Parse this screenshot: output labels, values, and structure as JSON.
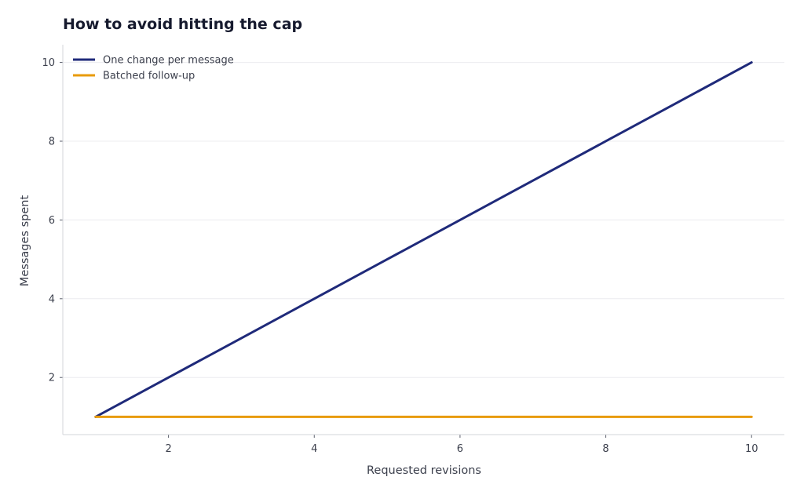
{
  "chart_data": {
    "type": "line",
    "title": "How to avoid hitting the cap",
    "xlabel": "Requested revisions",
    "ylabel": "Messages spent",
    "x": [
      1,
      2,
      3,
      4,
      5,
      6,
      7,
      8,
      9,
      10
    ],
    "series": [
      {
        "name": "One change per message",
        "values": [
          1,
          2,
          3,
          4,
          5,
          6,
          7,
          8,
          9,
          10
        ],
        "color": "#1f2a7a"
      },
      {
        "name": "Batched follow-up",
        "values": [
          1,
          1,
          1,
          1,
          1,
          1,
          1,
          1,
          1,
          1
        ],
        "color": "#e89b0c"
      }
    ],
    "xticks": [
      2,
      4,
      6,
      8,
      10
    ],
    "yticks": [
      2,
      4,
      6,
      8,
      10
    ],
    "xlim": [
      0.55,
      10.45
    ],
    "ylim": [
      0.55,
      10.45
    ],
    "grid": "horizontal",
    "legend": "top-left",
    "gridColor": "#ececef",
    "axisColor": "#d3d5da"
  }
}
